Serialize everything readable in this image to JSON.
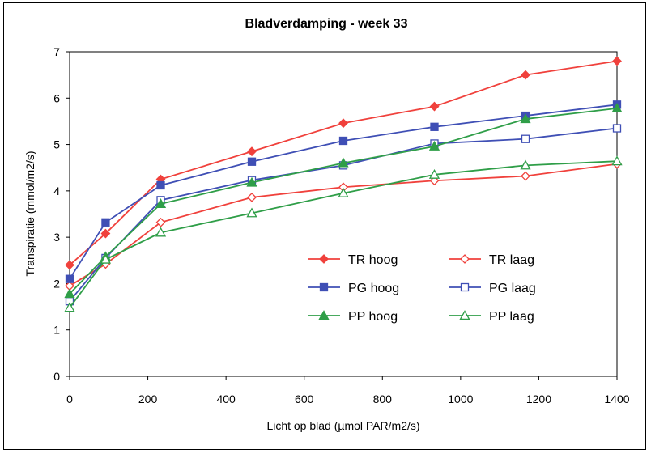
{
  "chart_data": {
    "type": "line",
    "title": "Bladverdamping - week 33",
    "xlabel": "Licht op blad (µmol PAR/m2/s)",
    "ylabel": "Transpiratie (mmol/m2/s)",
    "xlim": [
      0,
      1400
    ],
    "ylim": [
      0,
      7
    ],
    "xticks": [
      0,
      200,
      400,
      600,
      800,
      1000,
      1200,
      1400
    ],
    "yticks": [
      0,
      1,
      2,
      3,
      4,
      5,
      6,
      7
    ],
    "grid": false,
    "legend_position": "bottom-right",
    "series": [
      {
        "name": "TR hoog",
        "color": "#f0413c",
        "marker": "diamond",
        "filled": true,
        "x": [
          0,
          92,
          233,
          466,
          700,
          933,
          1166,
          1400
        ],
        "y": [
          2.4,
          3.08,
          4.25,
          4.85,
          5.46,
          5.82,
          6.5,
          6.8
        ]
      },
      {
        "name": "TR laag",
        "color": "#f0413c",
        "marker": "diamond",
        "filled": false,
        "x": [
          0,
          92,
          233,
          466,
          700,
          933,
          1166,
          1400
        ],
        "y": [
          1.95,
          2.42,
          3.32,
          3.86,
          4.08,
          4.22,
          4.32,
          4.58
        ]
      },
      {
        "name": "PG hoog",
        "color": "#3f4fb5",
        "marker": "square",
        "filled": true,
        "x": [
          0,
          92,
          233,
          466,
          700,
          933,
          1166,
          1400
        ],
        "y": [
          2.1,
          3.32,
          4.12,
          4.63,
          5.08,
          5.38,
          5.62,
          5.86
        ]
      },
      {
        "name": "PG laag",
        "color": "#3f4fb5",
        "marker": "square",
        "filled": false,
        "x": [
          0,
          92,
          233,
          466,
          700,
          933,
          1166,
          1400
        ],
        "y": [
          1.62,
          2.55,
          3.8,
          4.23,
          4.55,
          5.02,
          5.12,
          5.35
        ]
      },
      {
        "name": "PP hoog",
        "color": "#2f9e48",
        "marker": "triangle",
        "filled": true,
        "x": [
          0,
          92,
          233,
          466,
          700,
          933,
          1166,
          1400
        ],
        "y": [
          1.78,
          2.58,
          3.72,
          4.18,
          4.6,
          4.96,
          5.55,
          5.78
        ]
      },
      {
        "name": "PP laag",
        "color": "#2f9e48",
        "marker": "triangle",
        "filled": false,
        "x": [
          0,
          92,
          233,
          466,
          700,
          933,
          1166,
          1400
        ],
        "y": [
          1.48,
          2.52,
          3.1,
          3.52,
          3.95,
          4.35,
          4.55,
          4.64
        ]
      }
    ]
  }
}
